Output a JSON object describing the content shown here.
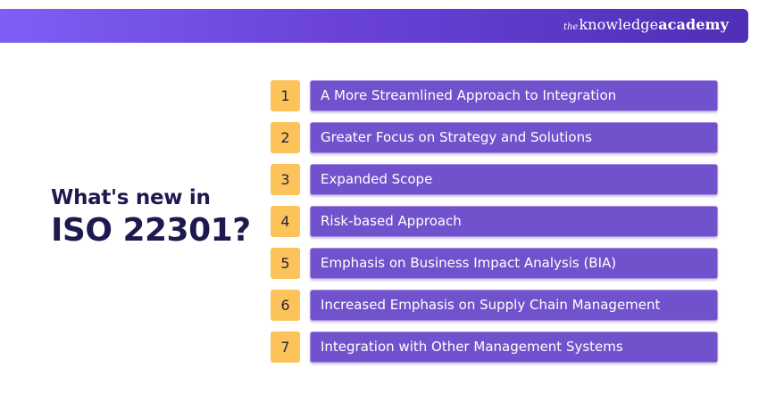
{
  "brand": {
    "prefix": "the",
    "name_light": "knowledge",
    "name_bold": "academy"
  },
  "heading": {
    "line1": "What's new in",
    "line2": "ISO 22301?"
  },
  "items": [
    {
      "number": "1",
      "label": "A More Streamlined Approach to Integration"
    },
    {
      "number": "2",
      "label": "Greater Focus on Strategy and Solutions"
    },
    {
      "number": "3",
      "label": "Expanded Scope"
    },
    {
      "number": "4",
      "label": "Risk-based Approach"
    },
    {
      "number": "5",
      "label": "Emphasis on Business Impact Analysis (BIA)"
    },
    {
      "number": "6",
      "label": "Increased Emphasis on Supply Chain Management"
    },
    {
      "number": "7",
      "label": "Integration with Other Management Systems"
    }
  ],
  "colors": {
    "banner_start": "#7e5ff5",
    "banner_end": "#4f2fb6",
    "number_badge": "#fcc35b",
    "item_bar": "#7252cc",
    "heading_text": "#1e1a4f"
  }
}
